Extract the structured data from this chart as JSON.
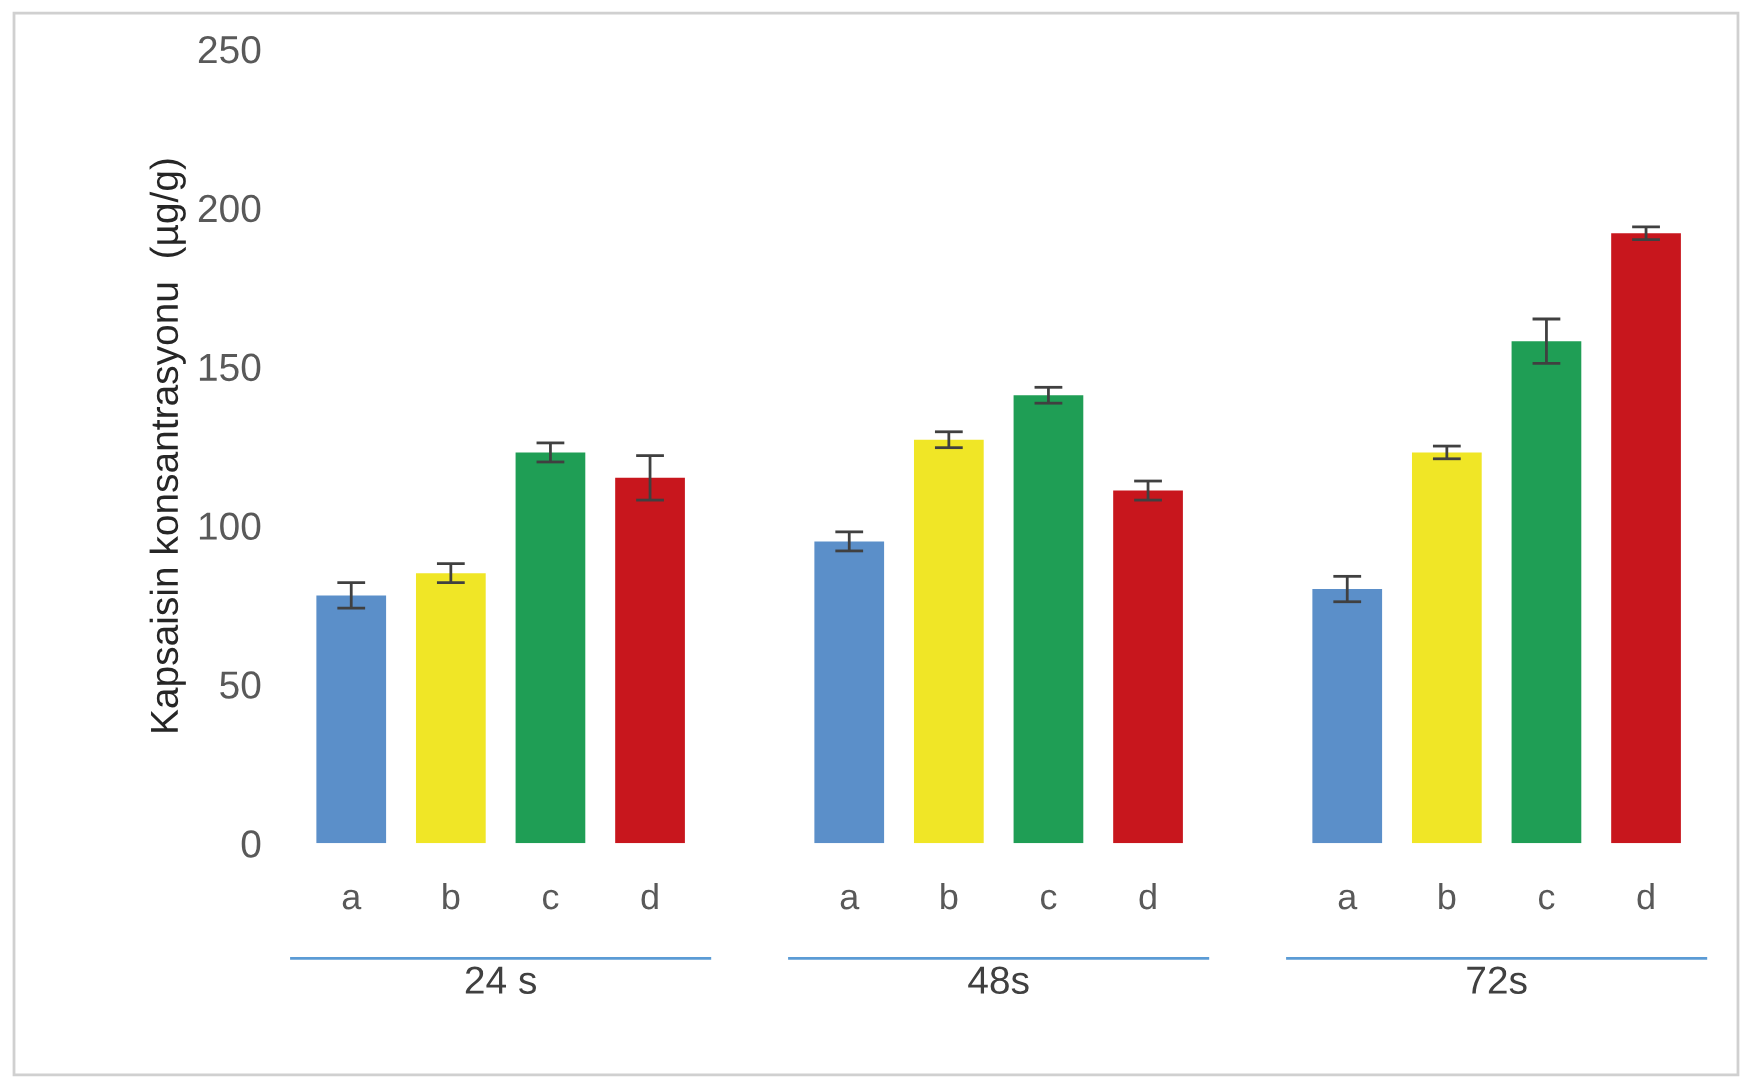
{
  "chart_data": {
    "type": "bar",
    "ylabel": "Kapsaisin konsantrasyonu  (µg/g)",
    "categories": [
      "24 s",
      "48s",
      "72s"
    ],
    "series": [
      {
        "name": "a",
        "color": "#5b8fc9",
        "values": [
          78,
          95,
          80
        ],
        "errors": [
          4,
          3,
          4
        ]
      },
      {
        "name": "b",
        "color": "#f0e626",
        "values": [
          85,
          127,
          123
        ],
        "errors": [
          3,
          2.5,
          2
        ]
      },
      {
        "name": "c",
        "color": "#1f9e55",
        "values": [
          123,
          141,
          158
        ],
        "errors": [
          3,
          2.5,
          7
        ]
      },
      {
        "name": "d",
        "color": "#c8161d",
        "values": [
          115,
          111,
          192
        ],
        "errors": [
          7,
          3,
          2
        ]
      }
    ],
    "ylim": [
      0,
      250
    ],
    "yticks": [
      0,
      50,
      100,
      150,
      200,
      250
    ],
    "grid": false,
    "legend": false
  }
}
